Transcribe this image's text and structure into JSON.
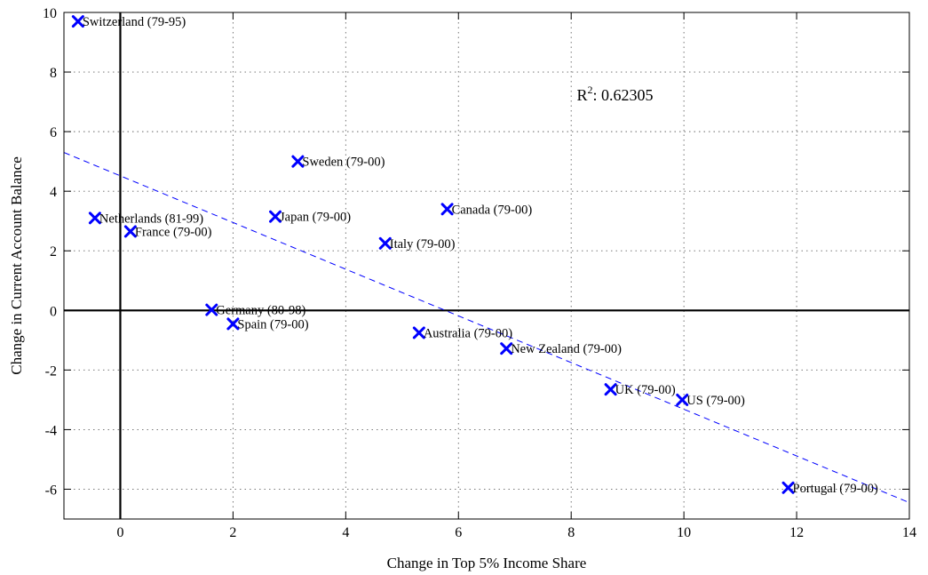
{
  "chart_data": {
    "type": "scatter",
    "title": "",
    "xlabel": "Change in Top 5% Income Share",
    "ylabel": "Change in Current Account Balance",
    "xlim": [
      -1,
      14
    ],
    "ylim": [
      -7,
      10
    ],
    "xticks": [
      0,
      2,
      4,
      6,
      8,
      10,
      12,
      14
    ],
    "yticks": [
      -6,
      -4,
      -2,
      0,
      2,
      4,
      6,
      8,
      10
    ],
    "grid": true,
    "marker_color": "#0000ff",
    "fit_color": "#0000ff",
    "annotation": {
      "label": "R",
      "superscript": "2",
      "value": ": 0.62305",
      "x": 8.1,
      "y": 7.05
    },
    "fit_line": {
      "x": [
        -1,
        14
      ],
      "y": [
        5.3,
        -6.45
      ]
    },
    "points": [
      {
        "label": "Switzerland (79-95)",
        "x": -0.75,
        "y": 9.7
      },
      {
        "label": "Netherlands (81-99)",
        "x": -0.45,
        "y": 3.1
      },
      {
        "label": "France (79-00)",
        "x": 0.18,
        "y": 2.65
      },
      {
        "label": "Germany (80-98)",
        "x": 1.62,
        "y": 0.02
      },
      {
        "label": "Spain (79-00)",
        "x": 2.0,
        "y": -0.45
      },
      {
        "label": "Japan (79-00)",
        "x": 2.75,
        "y": 3.15
      },
      {
        "label": "Sweden (79-00)",
        "x": 3.15,
        "y": 5.0
      },
      {
        "label": "Italy (79-00)",
        "x": 4.7,
        "y": 2.25
      },
      {
        "label": "Australia (79-00)",
        "x": 5.3,
        "y": -0.75
      },
      {
        "label": "Canada (79-00)",
        "x": 5.8,
        "y": 3.4
      },
      {
        "label": "New Zealand (79-00)",
        "x": 6.85,
        "y": -1.28
      },
      {
        "label": "UK (79-00)",
        "x": 8.7,
        "y": -2.65
      },
      {
        "label": "US (79-00)",
        "x": 9.97,
        "y": -3.0
      },
      {
        "label": "Portugal (79-00)",
        "x": 11.85,
        "y": -5.95
      }
    ]
  }
}
